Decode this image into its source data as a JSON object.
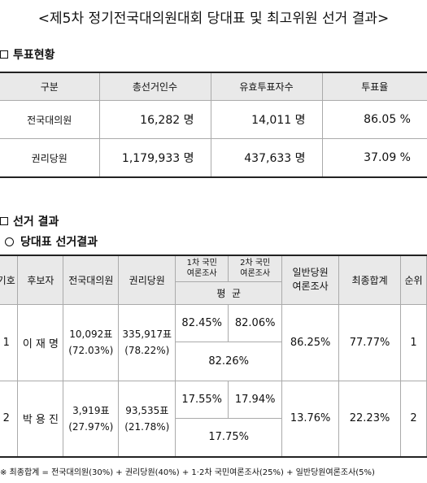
{
  "title": "<제5차 정기전국대의원대회 당대표 및 최고위원 선거 결과>",
  "section_vote": "투표현황",
  "vote_table": {
    "headers": [
      "구분",
      "총선거인수",
      "유효투표자수",
      "투표율"
    ],
    "rows": [
      {
        "label": "전국대의원",
        "electors": "16,282 명",
        "valid": "14,011 명",
        "rate": "86.05 %"
      },
      {
        "label": "권리당원",
        "electors": "1,179,933 명",
        "valid": "437,633 명",
        "rate": "37.09 %"
      }
    ]
  },
  "section_result": "선거 결과",
  "subsection_leader": "당대표 선거결과",
  "result_table": {
    "headers": {
      "no": "기호",
      "candidate": "후보자",
      "delegates": "전국대의원",
      "members": "권리당원",
      "poll1_line1": "1차 국민",
      "poll1_line2": "여론조사",
      "poll2_line1": "2차 국민",
      "poll2_line2": "여론조사",
      "average": "평  균",
      "general_line1": "일반당원",
      "general_line2": "여론조사",
      "total": "최종합계",
      "rank": "순위"
    },
    "candidates": [
      {
        "no": "1",
        "name": "이 재 명",
        "delegates_votes": "10,092표",
        "delegates_pct": "(72.03%)",
        "members_votes": "335,917표",
        "members_pct": "(78.22%)",
        "poll1": "82.45%",
        "poll2": "82.06%",
        "poll_avg": "82.26%",
        "general": "86.25%",
        "total": "77.77%",
        "rank": "1"
      },
      {
        "no": "2",
        "name": "박 용 진",
        "delegates_votes": "3,919표",
        "delegates_pct": "(27.97%)",
        "members_votes": "93,535표",
        "members_pct": "(21.78%)",
        "poll1": "17.55%",
        "poll2": "17.94%",
        "poll_avg": "17.75%",
        "general": "13.76%",
        "total": "22.23%",
        "rank": "2"
      }
    ]
  },
  "footnote": "※ 최종합계 = 전국대의원(30%) + 권리당원(40%) + 1·2차 국민여론조사(25%) + 일반당원여론조사(5%)"
}
